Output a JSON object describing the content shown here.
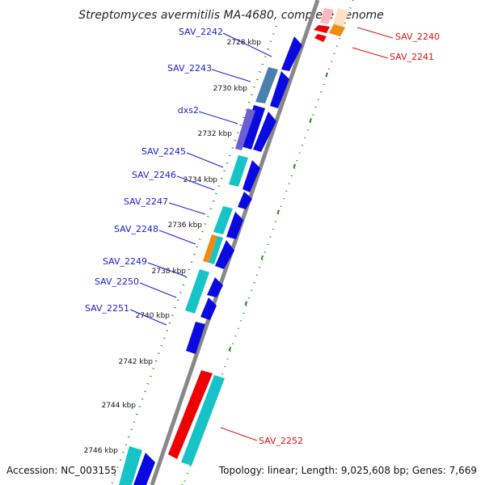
{
  "title": "Streptomyces avermitilis MA-4680, complete genome",
  "footer": {
    "accession": "Accession: NC_003155",
    "topology": "Topology: linear; Length: 9,025,608 bp; Genes: 7,669"
  },
  "ticks": [
    "2728 kbp",
    "2730 kbp",
    "2732 kbp",
    "2734 kbp",
    "2736 kbp",
    "2738 kbp",
    "2740 kbp",
    "2742 kbp",
    "2744 kbp",
    "2746 kbp"
  ],
  "genes_left": [
    "SAV_2242",
    "SAV_2243",
    "dxs2",
    "SAV_2245",
    "SAV_2246",
    "SAV_2247",
    "SAV_2248",
    "SAV_2249",
    "SAV_2250",
    "SAV_2251"
  ],
  "genes_right": [
    "SAV_2240",
    "SAV_2241",
    "SAV_2252"
  ],
  "colors": {
    "blue_label": "#1a1ad8",
    "red_label": "#e01010",
    "gene_blue": "#0a0ae0",
    "gene_cyan": "#16c4c8",
    "gene_red": "#f00000",
    "gene_orange": "#f08a10",
    "gene_steel": "#4a80b0",
    "dotted_track": "#1a8a1a",
    "backbone": "#888888"
  }
}
